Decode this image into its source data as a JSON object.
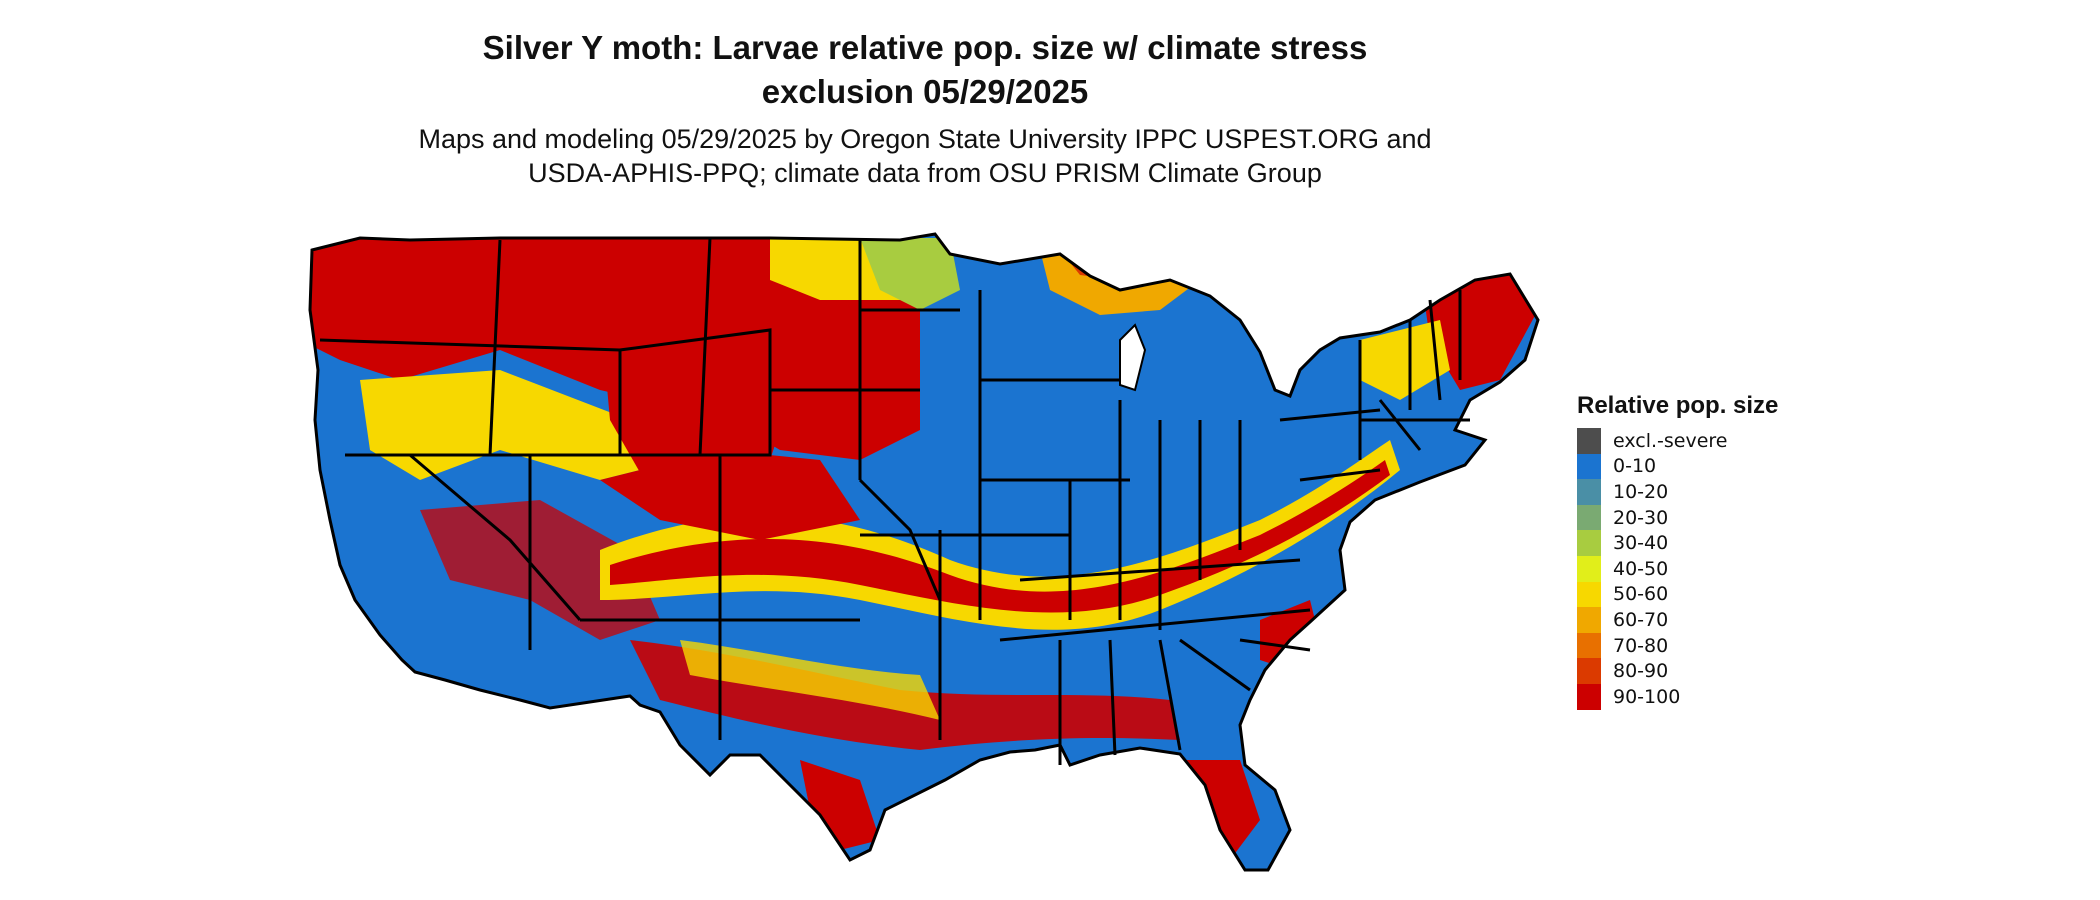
{
  "map": {
    "title_lines": [
      "Silver Y moth: Larvae relative pop. size w/ climate stress",
      "exclusion 05/29/2025"
    ],
    "subtitle_lines": [
      "Maps and modeling 05/29/2025 by Oregon State University IPPC USPEST.ORG and",
      "USDA-APHIS-PPQ; climate data from OSU PRISM Climate Group"
    ],
    "region": "contiguous United States",
    "legend": {
      "title": "Relative pop. size",
      "items": [
        {
          "label": "excl.-severe",
          "color": "#4d4d4d"
        },
        {
          "label": "0-10",
          "color": "#1b74d0"
        },
        {
          "label": "10-20",
          "color": "#4a8fa6"
        },
        {
          "label": "20-30",
          "color": "#7aaa72"
        },
        {
          "label": "30-40",
          "color": "#a8cc40"
        },
        {
          "label": "40-50",
          "color": "#e1ee1a"
        },
        {
          "label": "50-60",
          "color": "#f7d800"
        },
        {
          "label": "60-70",
          "color": "#f0a800"
        },
        {
          "label": "70-80",
          "color": "#e87000"
        },
        {
          "label": "80-90",
          "color": "#db3a00"
        },
        {
          "label": "90-100",
          "color": "#cc0000"
        }
      ]
    }
  }
}
